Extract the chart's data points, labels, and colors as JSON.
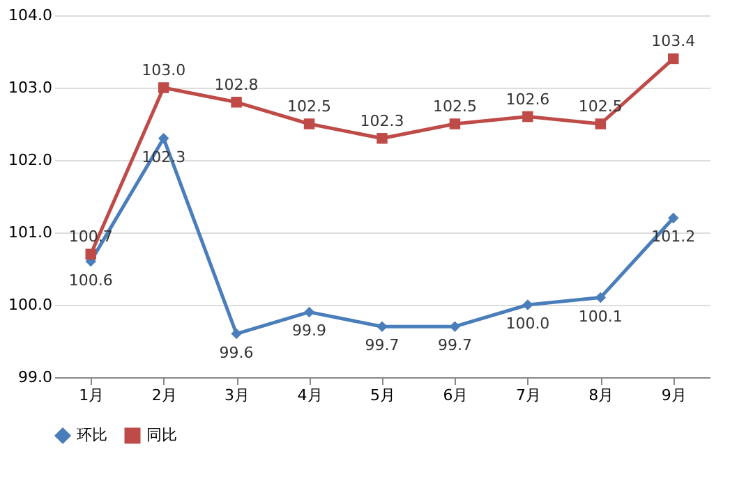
{
  "chart_data": {
    "type": "line",
    "categories": [
      "1月",
      "2月",
      "3月",
      "4月",
      "5月",
      "6月",
      "7月",
      "8月",
      "9月"
    ],
    "series": [
      {
        "name": "环比",
        "color": "#4a7ebb",
        "marker": "diamond",
        "values": [
          100.6,
          102.3,
          99.6,
          99.9,
          99.7,
          99.7,
          100.0,
          100.1,
          101.2
        ],
        "value_labels": [
          "100.6",
          "102.3",
          "99.6",
          "99.9",
          "99.7",
          "99.7",
          "100.0",
          "100.1",
          "101.2"
        ]
      },
      {
        "name": "同比",
        "color": "#be4b48",
        "marker": "square",
        "values": [
          100.7,
          103.0,
          102.8,
          102.5,
          102.3,
          102.5,
          102.6,
          102.5,
          103.4
        ],
        "value_labels": [
          "100.7",
          "103.0",
          "102.8",
          "102.5",
          "102.3",
          "102.5",
          "102.6",
          "102.5",
          "103.4"
        ]
      }
    ],
    "ylim": [
      99,
      104
    ],
    "yticks": [
      {
        "value": 99,
        "label": "99.0"
      },
      {
        "value": 100,
        "label": "100.0"
      },
      {
        "value": 101,
        "label": "101.0"
      },
      {
        "value": 102,
        "label": "102.0"
      },
      {
        "value": 103,
        "label": "103.0"
      },
      {
        "value": 104,
        "label": "104.0"
      }
    ],
    "grid": "y",
    "legend": "bottom",
    "line_style": "solid"
  }
}
